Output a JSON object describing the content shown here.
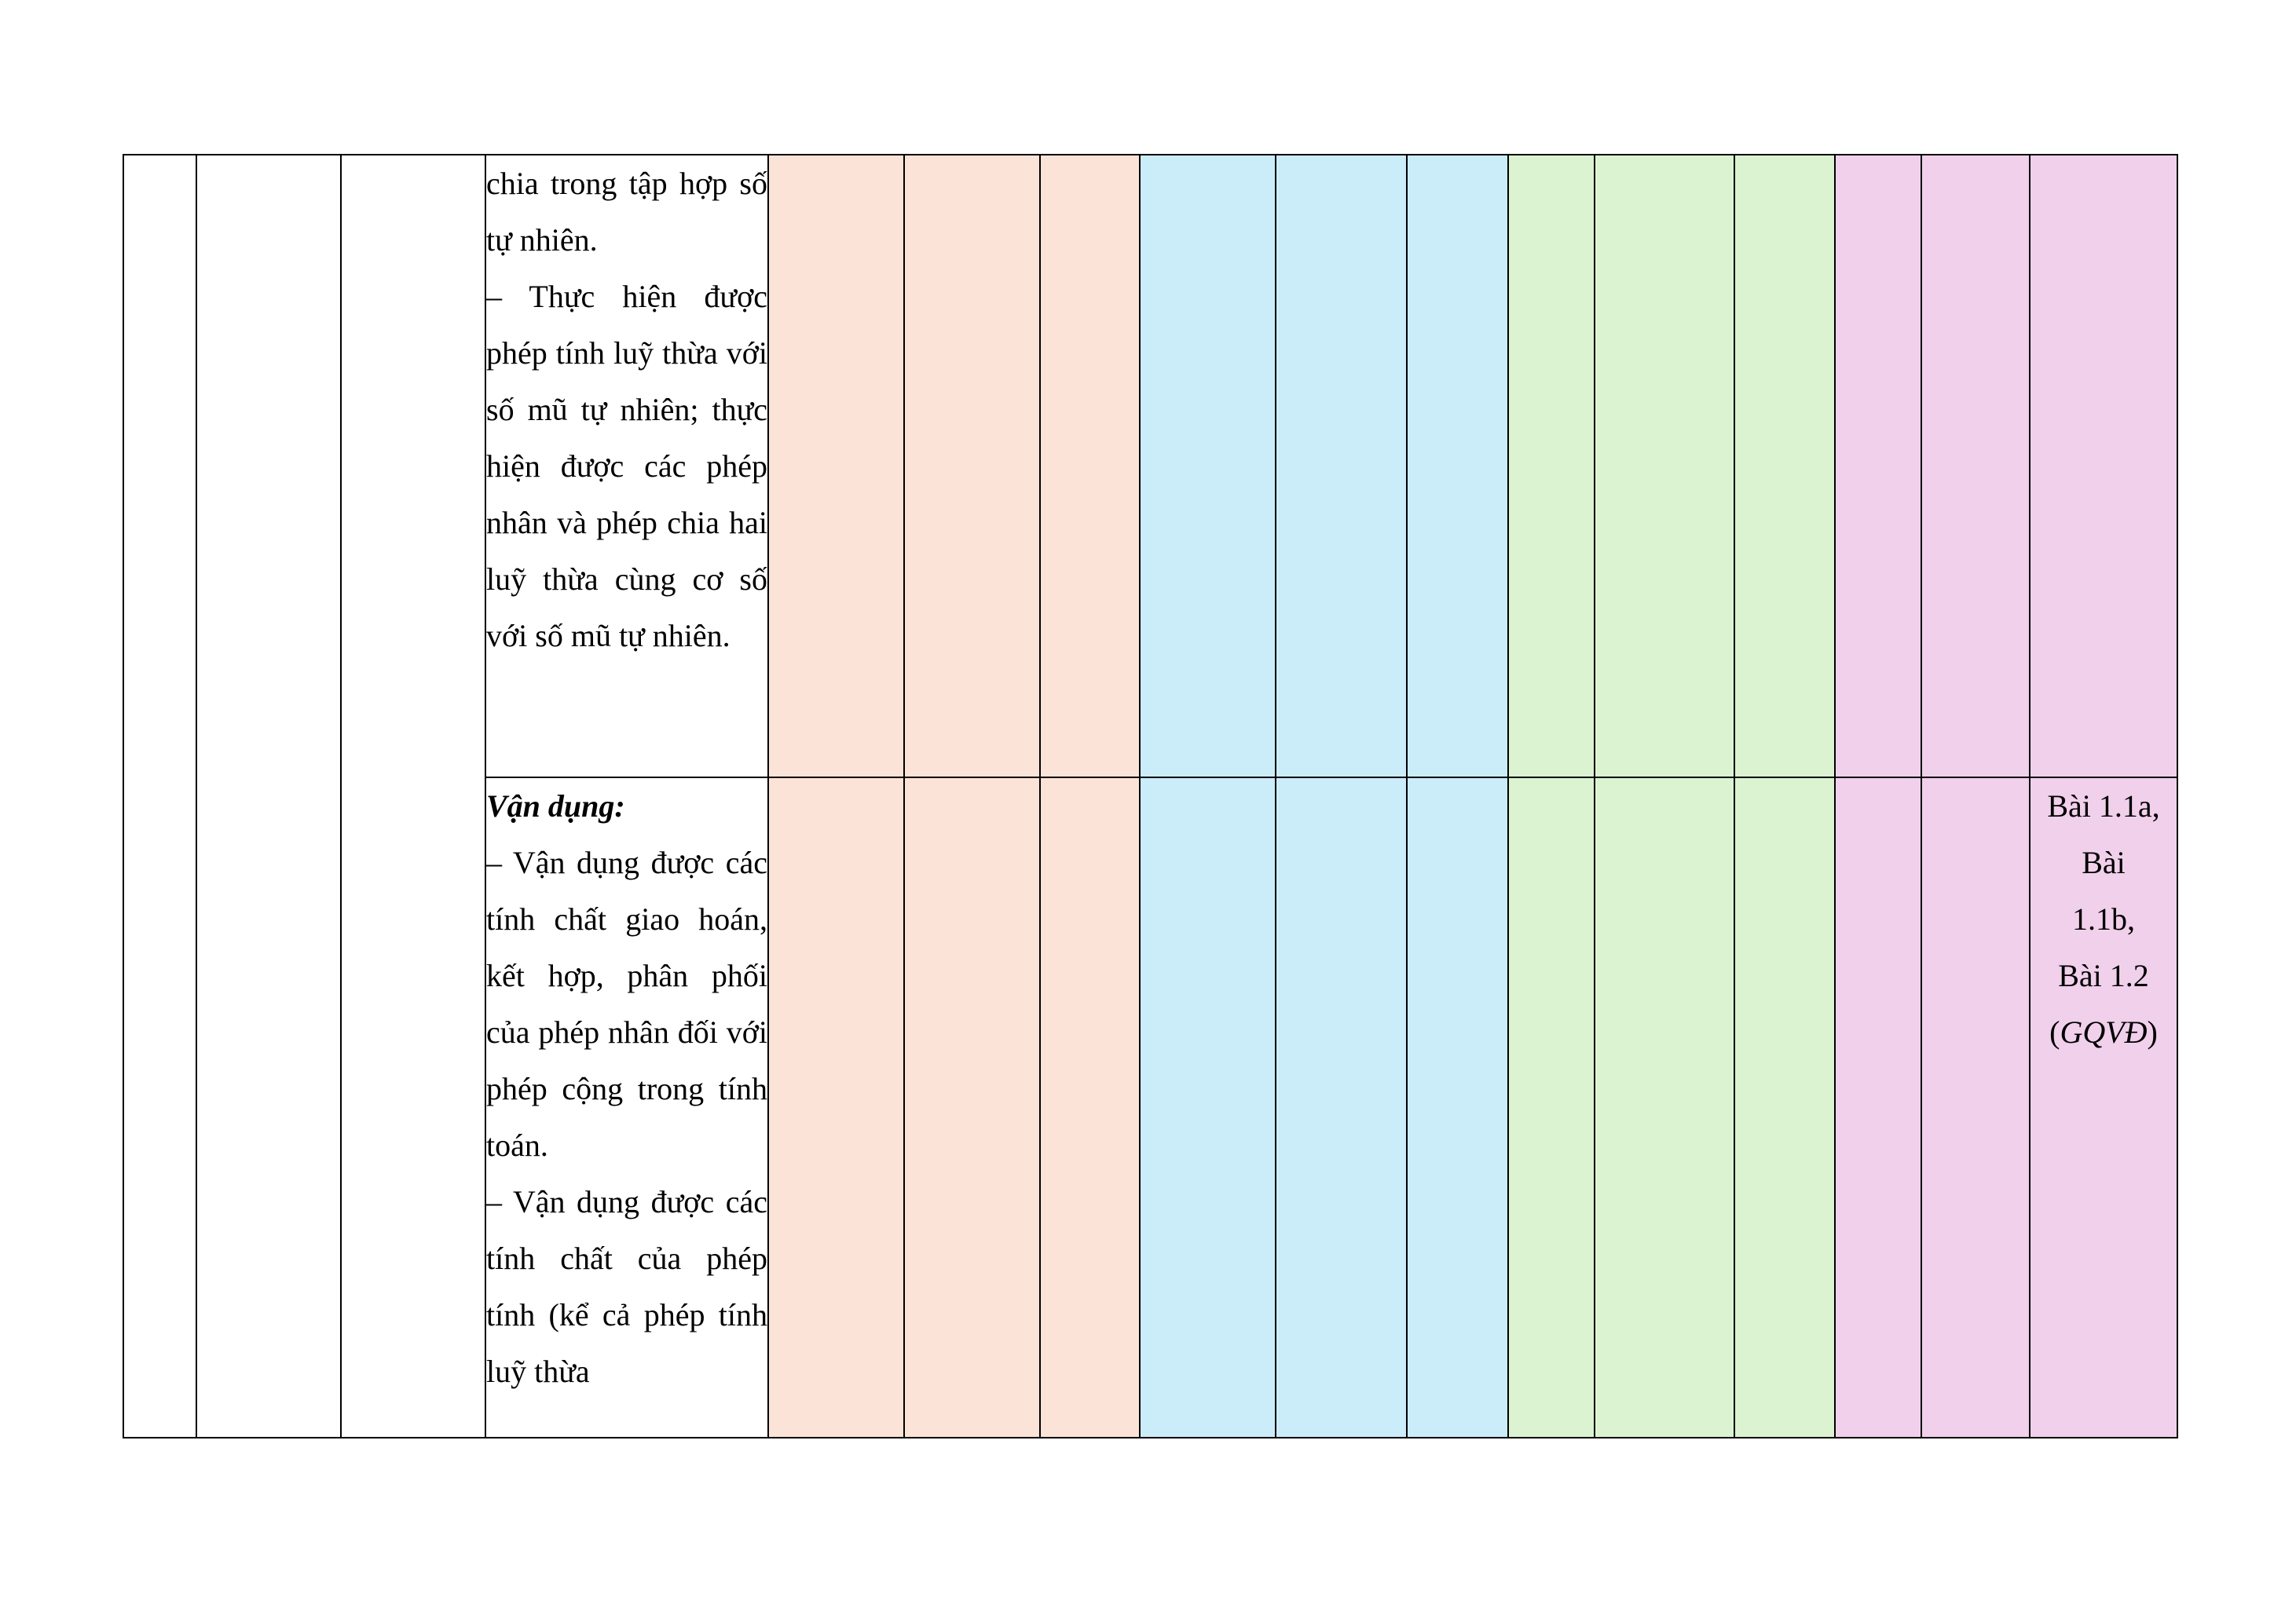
{
  "table": {
    "row1": {
      "text_lines": [
        "chia trong tập hợp số tự nhiên.",
        "– Thực hiện được phép tính luỹ thừa với số mũ tự nhiên; thực hiện được các phép nhân và phép chia hai luỹ thừa cùng cơ số với số mũ tự nhiên."
      ]
    },
    "row2": {
      "heading": "Vận dụng:",
      "text_lines": [
        "– Vận dụng được các tính chất giao hoán, kết hợp, phân phối của phép nhân đối với phép cộng trong tính toán.",
        "– Vận dụng được các tính chất của phép tính (kể cả phép tính luỹ thừa"
      ],
      "questions": {
        "line1": "Bài 1.1a,",
        "line2": "Bài",
        "line3": "1.1b,",
        "line4": "Bài 1.2",
        "paren_open": "(",
        "competency": "GQVĐ",
        "paren_close": ")"
      }
    },
    "colors": {
      "recognize_band": "#fbe3d7",
      "understand_band": "#cbecf9",
      "apply_band": "#dcf3d2",
      "high_apply_band": "#f1d0ec"
    }
  }
}
